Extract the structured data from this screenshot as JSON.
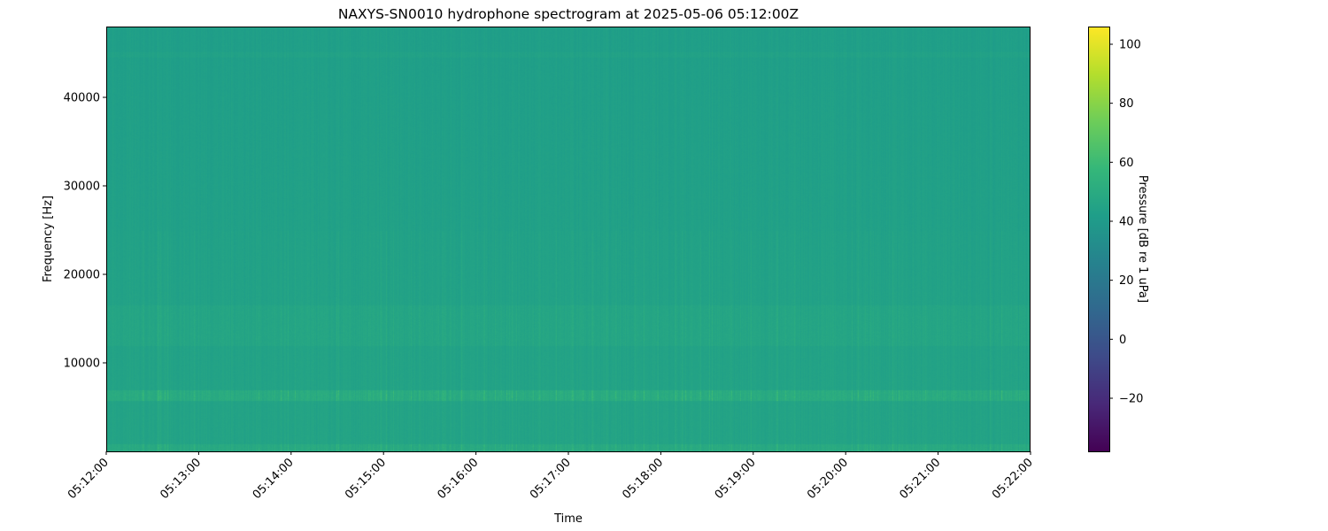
{
  "chart_data": {
    "type": "heatmap",
    "title": "NAXYS-SN0010 hydrophone spectrogram at 2025-05-06 05:12:00Z",
    "xlabel": "Time",
    "ylabel": "Frequency [Hz]",
    "x_ticks": [
      "05:12:00",
      "05:13:00",
      "05:14:00",
      "05:15:00",
      "05:16:00",
      "05:17:00",
      "05:18:00",
      "05:19:00",
      "05:20:00",
      "05:21:00",
      "05:22:00"
    ],
    "y_ticks": [
      10000,
      20000,
      30000,
      40000
    ],
    "ylim": [
      0,
      48000
    ],
    "colormap": "viridis",
    "colorbar": {
      "label": "Pressure [dB re 1 uPa]",
      "ticks": [
        -20,
        0,
        20,
        40,
        60,
        80,
        100
      ],
      "range": [
        -38,
        106
      ]
    },
    "background_level_db": 45,
    "bands": [
      {
        "freq_low_hz": 0,
        "freq_high_hz": 800,
        "level_db": 58
      },
      {
        "freq_low_hz": 5800,
        "freq_high_hz": 6900,
        "level_db": 62
      },
      {
        "freq_low_hz": 12000,
        "freq_high_hz": 16500,
        "level_db": 52
      }
    ],
    "grid": false
  }
}
